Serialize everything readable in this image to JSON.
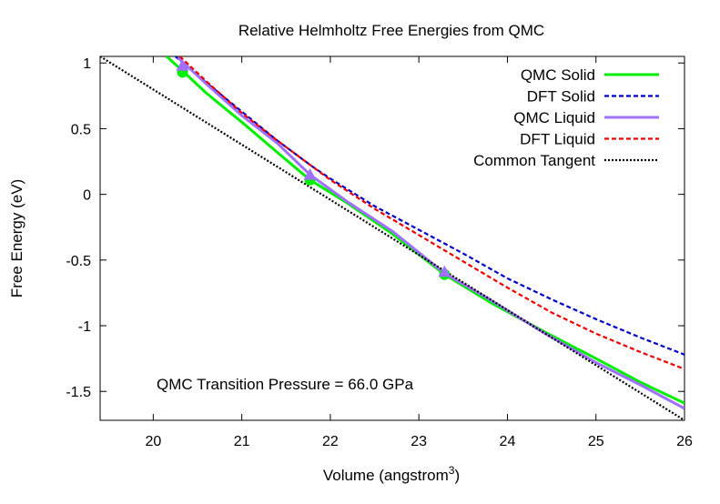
{
  "chart_data": {
    "type": "line",
    "title": "Relative Helmholtz Free Energies from QMC",
    "xlabel": "Volume (angstrom",
    "xlabel_sup": "3",
    "xlabel_close": ")",
    "ylabel": "Free Energy (eV)",
    "xlim": [
      19.4,
      26
    ],
    "ylim": [
      -1.72,
      1.05
    ],
    "xticks": [
      20,
      21,
      22,
      23,
      24,
      25,
      26
    ],
    "xtick_labels": [
      "20",
      "21",
      "22",
      "23",
      "24",
      "25",
      "26"
    ],
    "yticks": [
      1,
      0.5,
      0,
      -0.5,
      -1,
      -1.5
    ],
    "ytick_labels": [
      "1",
      "0.5",
      "0",
      "-0.5",
      "-1",
      "-1.5"
    ],
    "grid": false,
    "legend_position": "top-right",
    "annotation": "QMC Transition Pressure =   66.0 GPa",
    "series": [
      {
        "name": "QMC Solid",
        "color": "#00ee00",
        "style": "solid",
        "x": [
          20.15,
          20.33,
          20.6,
          21.0,
          21.4,
          21.77,
          22.2,
          22.7,
          23.29,
          23.8,
          24.4,
          25.0,
          25.5,
          26.0
        ],
        "y": [
          1.05,
          0.94,
          0.77,
          0.55,
          0.32,
          0.11,
          -0.07,
          -0.3,
          -0.61,
          -0.82,
          -1.04,
          -1.25,
          -1.43,
          -1.59
        ]
      },
      {
        "name": "DFT Solid",
        "color": "#0000cc",
        "style": "dashed",
        "x": [
          20.25,
          20.6,
          21.0,
          21.4,
          21.8,
          22.0,
          22.5,
          23.0,
          23.5,
          24.0,
          24.5,
          25.0,
          25.5,
          26.0
        ],
        "y": [
          1.05,
          0.85,
          0.63,
          0.41,
          0.21,
          0.12,
          -0.09,
          -0.27,
          -0.45,
          -0.64,
          -0.8,
          -0.95,
          -1.09,
          -1.22
        ]
      },
      {
        "name": "QMC Liquid",
        "color": "#a070ff",
        "style": "solid",
        "x": [
          20.28,
          20.6,
          21.0,
          21.4,
          21.77,
          22.2,
          22.7,
          23.29,
          23.8,
          24.4,
          25.0,
          25.5,
          26.0
        ],
        "y": [
          1.04,
          0.84,
          0.6,
          0.39,
          0.15,
          -0.06,
          -0.28,
          -0.6,
          -0.8,
          -1.05,
          -1.28,
          -1.45,
          -1.63
        ]
      },
      {
        "name": "DFT Liquid",
        "color": "#ee0000",
        "style": "dashed",
        "x": [
          20.3,
          20.6,
          21.0,
          21.4,
          21.8,
          22.0,
          22.5,
          23.0,
          23.5,
          24.0,
          24.5,
          25.0,
          25.5,
          26.0
        ],
        "y": [
          1.05,
          0.86,
          0.62,
          0.41,
          0.21,
          0.11,
          -0.11,
          -0.31,
          -0.51,
          -0.71,
          -0.9,
          -1.06,
          -1.2,
          -1.33
        ]
      },
      {
        "name": "Common Tangent",
        "color": "#000000",
        "style": "dotted",
        "x": [
          19.4,
          26.0
        ],
        "y": [
          1.05,
          -1.72
        ]
      }
    ],
    "markers": [
      {
        "series": "QMC Solid",
        "shape": "circle",
        "color": "#00ee00",
        "points": [
          [
            20.33,
            0.93
          ],
          [
            21.77,
            0.11
          ],
          [
            23.29,
            -0.61
          ]
        ]
      },
      {
        "series": "QMC Liquid",
        "shape": "triangle",
        "color": "#a070ff",
        "points": [
          [
            20.33,
            0.98
          ],
          [
            21.77,
            0.15
          ],
          [
            23.29,
            -0.59
          ]
        ]
      }
    ]
  }
}
